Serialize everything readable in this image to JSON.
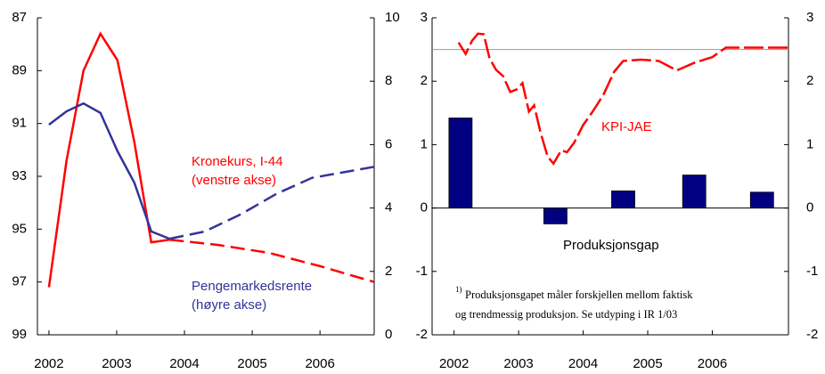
{
  "chart_data": [
    {
      "type": "line",
      "xlim": [
        2001.83,
        2006.8
      ],
      "xticks": [
        2002,
        2003,
        2004,
        2005,
        2006
      ],
      "ylim": [
        99,
        87
      ],
      "yticks": [
        87,
        89,
        91,
        93,
        95,
        97,
        99
      ],
      "y2lim": [
        0,
        10
      ],
      "y2ticks": [
        0,
        2,
        4,
        6,
        8,
        10
      ],
      "series": [
        {
          "name": "Kronekurs, I-44",
          "note": "(venstre akse)",
          "color": "#ff0000",
          "x": [
            2002,
            2002.26,
            2002.51,
            2002.76,
            2003.01,
            2003.26,
            2003.51,
            2003.78
          ],
          "values": [
            97.2,
            92.4,
            89.0,
            87.6,
            88.6,
            91.7,
            95.5,
            95.4
          ],
          "projection_x": [
            2003.78,
            2004.5,
            2005.25,
            2006,
            2006.8
          ],
          "projection_values": [
            95.4,
            95.6,
            95.9,
            96.4,
            97.0
          ]
        },
        {
          "name": "Pengemarkedsrente",
          "note": "(høyre akse)",
          "color": "#333399",
          "axis": "y2",
          "x": [
            2002,
            2002.26,
            2002.51,
            2002.76,
            2003.01,
            2003.26,
            2003.51,
            2003.78
          ],
          "values": [
            6.63,
            7.05,
            7.3,
            7.0,
            5.8,
            4.8,
            3.26,
            3.03
          ],
          "projection_x": [
            2003.78,
            2004.3,
            2004.83,
            2005.36,
            2005.88,
            2006.8
          ],
          "projection_values": [
            3.03,
            3.26,
            3.8,
            4.45,
            4.95,
            5.3
          ]
        }
      ]
    },
    {
      "type": "bar",
      "xlim": [
        2001.66,
        2007.18
      ],
      "xticks": [
        2002,
        2003,
        2004,
        2005,
        2006
      ],
      "ylim": [
        -2,
        3
      ],
      "yticks": [
        -2,
        -1,
        0,
        1,
        2,
        3
      ],
      "y2lim": [
        -2,
        3
      ],
      "y2ticks": [
        -2,
        -1,
        0,
        1,
        2,
        3
      ],
      "reference_line": 2.5,
      "series": [
        {
          "name": "Produksjonsgap",
          "color": "#000080",
          "x": [
            2002.1,
            2003.57,
            2004.62,
            2005.72,
            2006.77
          ],
          "values": [
            1.42,
            -0.25,
            0.27,
            0.52,
            0.25
          ]
        },
        {
          "name": "KPI-JAE",
          "color": "#ff0000",
          "style": "line",
          "x": [
            2002.07,
            2002.18,
            2002.28,
            2002.37,
            2002.46,
            2002.55,
            2002.65,
            2002.76,
            2002.87,
            2002.97,
            2003.06,
            2003.16,
            2003.24,
            2003.34,
            2003.45,
            2003.54,
            2003.66,
            2003.75,
            2003.86,
            2004.0,
            2004.1,
            2004.21,
            2004.32,
            2004.48,
            2004.62,
            2004.9,
            2005.17,
            2005.45,
            2005.72,
            2006.0,
            2006.21,
            2006.69,
            2007.17
          ],
          "values": [
            2.61,
            2.43,
            2.64,
            2.75,
            2.74,
            2.36,
            2.18,
            2.08,
            1.83,
            1.87,
            1.97,
            1.52,
            1.62,
            1.19,
            0.81,
            0.7,
            0.91,
            0.88,
            1.03,
            1.31,
            1.45,
            1.62,
            1.8,
            2.15,
            2.32,
            2.34,
            2.32,
            2.17,
            2.29,
            2.38,
            2.53,
            2.53,
            2.53
          ]
        }
      ],
      "footnote_marker": "1)",
      "footnote": [
        "Produksjonsgapet måler forskjellen mellom faktisk",
        "og trendmessig produksjon. Se utdyping i IR 1/03"
      ]
    }
  ]
}
